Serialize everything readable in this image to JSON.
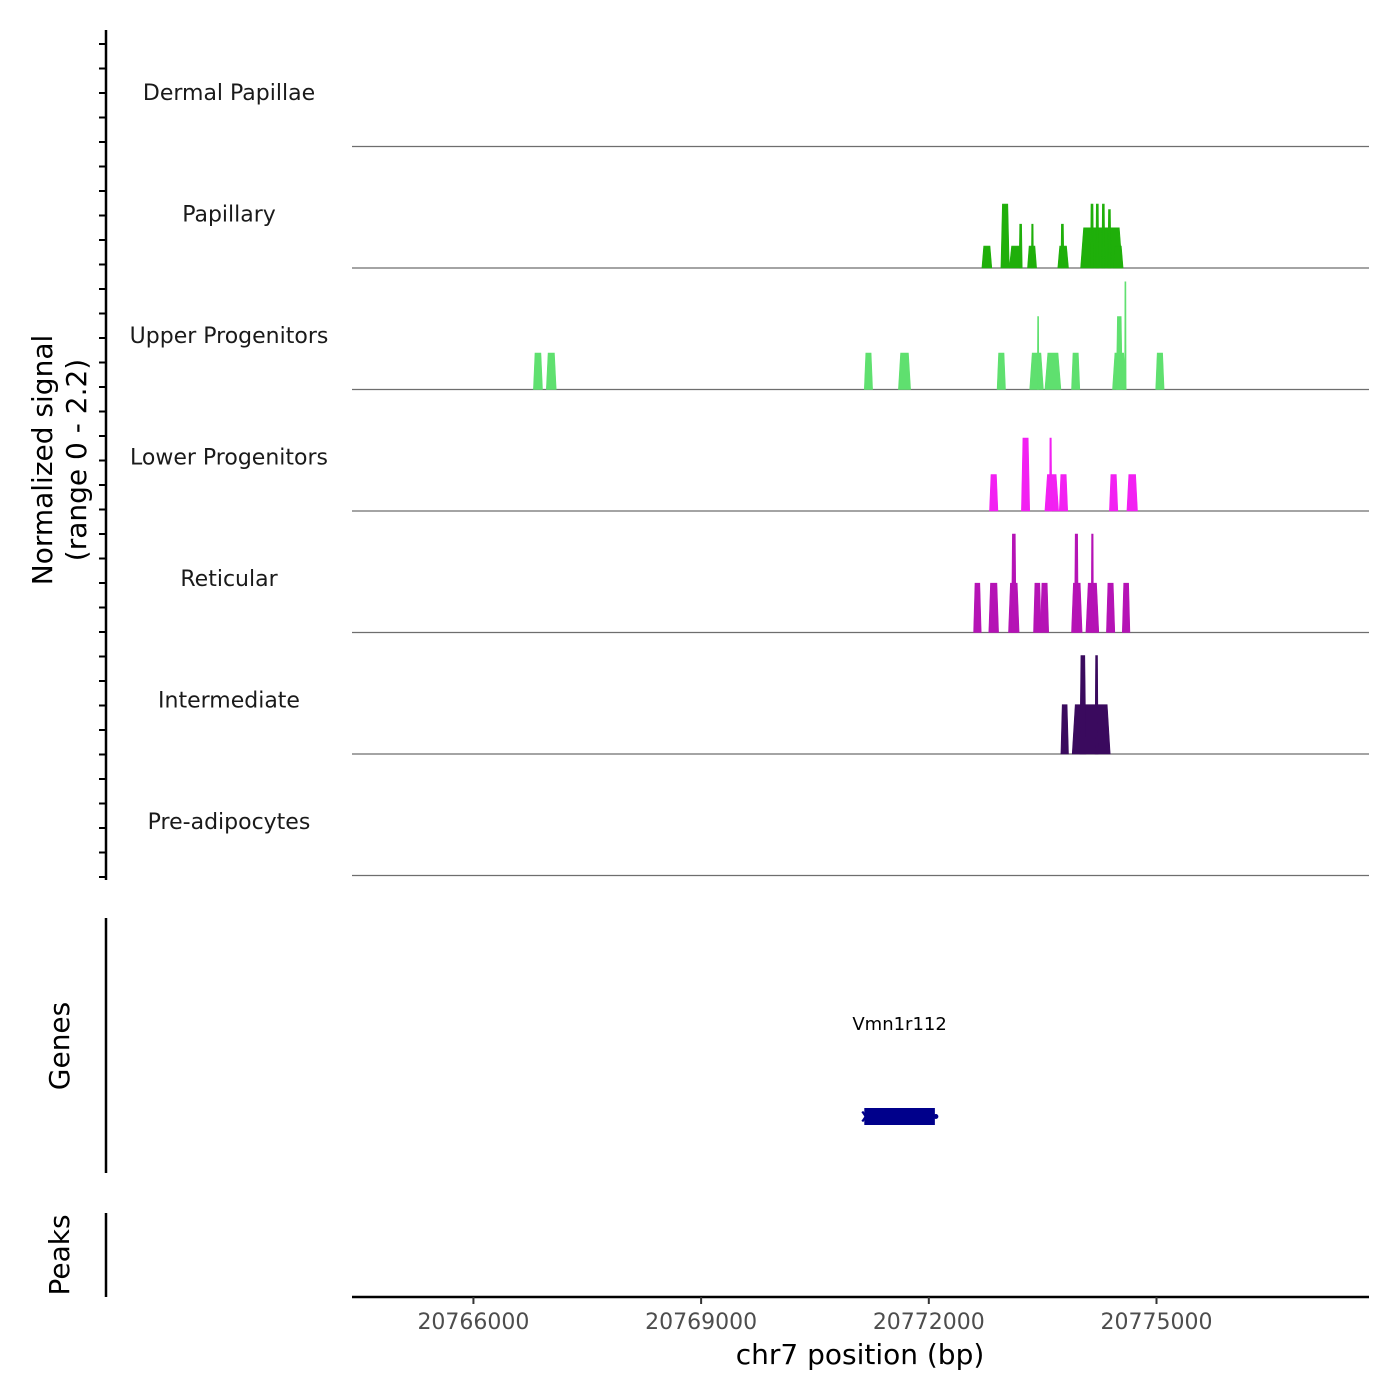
{
  "chart_data": {
    "type": "area",
    "chromosome": "chr7",
    "xlabel": "chr7 position (bp)",
    "ylabel": "Normalized signal",
    "ylabel_range": "(range 0 - 2.2)",
    "xlim": [
      20764400,
      20777800
    ],
    "ylim": [
      0,
      2.2
    ],
    "x_ticks": [
      {
        "value": 20766000,
        "label": "20766000"
      },
      {
        "value": 20769000,
        "label": "20769000"
      },
      {
        "value": 20772000,
        "label": "20772000"
      },
      {
        "value": 20775000,
        "label": "20775000"
      }
    ],
    "tracks": [
      {
        "name": "Dermal Papillae",
        "color": "#1a9850",
        "peaks": []
      },
      {
        "name": "Papillary",
        "color": "#1faf0a",
        "peaks": [
          {
            "start": 20772700,
            "end": 20772830,
            "value": 0.6
          },
          {
            "start": 20772950,
            "end": 20773060,
            "value": 1.75
          },
          {
            "start": 20773060,
            "end": 20773230,
            "value": 0.6
          },
          {
            "start": 20773190,
            "end": 20773230,
            "value": 1.2
          },
          {
            "start": 20773300,
            "end": 20773420,
            "value": 0.6
          },
          {
            "start": 20773350,
            "end": 20773380,
            "value": 1.2
          },
          {
            "start": 20773700,
            "end": 20773840,
            "value": 0.6
          },
          {
            "start": 20773740,
            "end": 20773780,
            "value": 1.2
          },
          {
            "start": 20774000,
            "end": 20774550,
            "value": 1.1
          },
          {
            "start": 20774130,
            "end": 20774170,
            "value": 1.75
          },
          {
            "start": 20774200,
            "end": 20774240,
            "value": 1.75
          },
          {
            "start": 20774280,
            "end": 20774320,
            "value": 1.75
          },
          {
            "start": 20774360,
            "end": 20774400,
            "value": 1.6
          },
          {
            "start": 20774430,
            "end": 20774560,
            "value": 0.6
          }
        ]
      },
      {
        "name": "Upper Progenitors",
        "color": "#5fe06f",
        "peaks": [
          {
            "start": 20766790,
            "end": 20766910,
            "value": 1.0
          },
          {
            "start": 20766960,
            "end": 20767090,
            "value": 1.0
          },
          {
            "start": 20771150,
            "end": 20771260,
            "value": 1.0
          },
          {
            "start": 20771600,
            "end": 20771760,
            "value": 1.0
          },
          {
            "start": 20772900,
            "end": 20773010,
            "value": 1.0
          },
          {
            "start": 20773330,
            "end": 20773510,
            "value": 1.0
          },
          {
            "start": 20773430,
            "end": 20773450,
            "value": 2.0
          },
          {
            "start": 20773530,
            "end": 20773740,
            "value": 1.0
          },
          {
            "start": 20773880,
            "end": 20773990,
            "value": 1.0
          },
          {
            "start": 20774420,
            "end": 20774600,
            "value": 1.0
          },
          {
            "start": 20774470,
            "end": 20774550,
            "value": 2.0
          },
          {
            "start": 20774580,
            "end": 20774600,
            "value": 2.95
          },
          {
            "start": 20774990,
            "end": 20775100,
            "value": 1.0
          }
        ]
      },
      {
        "name": "Lower Progenitors",
        "color": "#f221f2",
        "peaks": [
          {
            "start": 20772800,
            "end": 20772910,
            "value": 1.0
          },
          {
            "start": 20773220,
            "end": 20773330,
            "value": 2.0
          },
          {
            "start": 20773530,
            "end": 20773710,
            "value": 1.0
          },
          {
            "start": 20773590,
            "end": 20773620,
            "value": 2.0
          },
          {
            "start": 20773720,
            "end": 20773830,
            "value": 1.0
          },
          {
            "start": 20774380,
            "end": 20774490,
            "value": 1.0
          },
          {
            "start": 20774610,
            "end": 20774750,
            "value": 1.0
          }
        ]
      },
      {
        "name": "Reticular",
        "color": "#b513b5",
        "peaks": [
          {
            "start": 20772590,
            "end": 20772690,
            "value": 1.35
          },
          {
            "start": 20772790,
            "end": 20772920,
            "value": 1.35
          },
          {
            "start": 20773050,
            "end": 20773190,
            "value": 1.35
          },
          {
            "start": 20773090,
            "end": 20773150,
            "value": 2.7
          },
          {
            "start": 20773380,
            "end": 20773480,
            "value": 1.35
          },
          {
            "start": 20773470,
            "end": 20773580,
            "value": 1.35
          },
          {
            "start": 20773880,
            "end": 20774020,
            "value": 1.35
          },
          {
            "start": 20773920,
            "end": 20773970,
            "value": 2.7
          },
          {
            "start": 20774070,
            "end": 20774240,
            "value": 1.35
          },
          {
            "start": 20774140,
            "end": 20774170,
            "value": 2.7
          },
          {
            "start": 20774340,
            "end": 20774450,
            "value": 1.35
          },
          {
            "start": 20774550,
            "end": 20774650,
            "value": 1.35
          }
        ]
      },
      {
        "name": "Intermediate",
        "color": "#3a0a5e",
        "peaks": [
          {
            "start": 20773740,
            "end": 20773840,
            "value": 1.35
          },
          {
            "start": 20773890,
            "end": 20774390,
            "value": 1.35
          },
          {
            "start": 20773990,
            "end": 20774070,
            "value": 2.7
          },
          {
            "start": 20774190,
            "end": 20774230,
            "value": 2.7
          }
        ]
      },
      {
        "name": "Pre-adipocytes",
        "color": "#e08214",
        "peaks": []
      }
    ],
    "genes": [
      {
        "name": "Vmn1r112",
        "start": 20771150,
        "end": 20772080,
        "strand": "-",
        "color": "#00008b"
      }
    ],
    "panel_labels": {
      "genes": "Genes",
      "peaks": "Peaks"
    },
    "peaks_track": []
  }
}
